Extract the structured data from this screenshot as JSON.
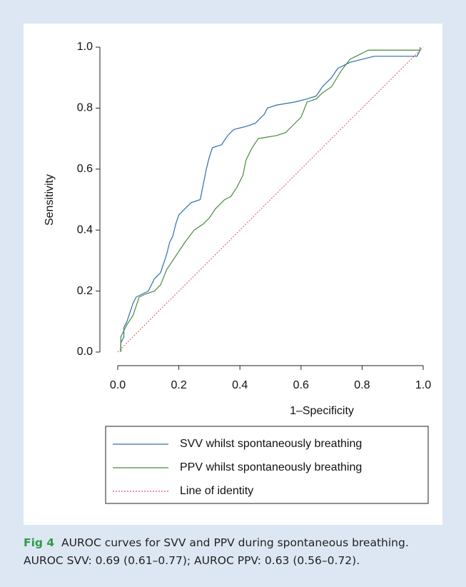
{
  "chart_data": {
    "type": "line",
    "x_label": "1–Specificity",
    "y_label": "Sensitivity",
    "caption_label": "Fig 4",
    "caption": "AUROC curves for SVV and PPV during spontaneous breathing. AUROC SVV: 0.69 (0.61–0.77); AUROC PPV: 0.63 (0.56–0.72).",
    "xlim": [
      0,
      1
    ],
    "ylim": [
      0,
      1
    ],
    "xticks": [
      {
        "value": 0,
        "label": "0.0"
      },
      {
        "value": 0.2,
        "label": "0.2"
      },
      {
        "value": 0.4,
        "label": "0.4"
      },
      {
        "value": 0.6,
        "label": "0.6"
      },
      {
        "value": 0.8,
        "label": "0.8"
      },
      {
        "value": 1,
        "label": "1.0"
      }
    ],
    "yticks": [
      {
        "value": 0,
        "label": "0.0"
      },
      {
        "value": 0.2,
        "label": "0.2"
      },
      {
        "value": 0.4,
        "label": "0.4"
      },
      {
        "value": 0.6,
        "label": "0.6"
      },
      {
        "value": 0.8,
        "label": "0.8"
      },
      {
        "value": 1,
        "label": "1.0"
      }
    ],
    "series": [
      {
        "name": "SVV whilst spontaneously breathing",
        "color": "#2b6fb0",
        "linestyle": "solid",
        "x": [
          0.01,
          0.01,
          0.02,
          0.02,
          0.03,
          0.04,
          0.05,
          0.06,
          0.08,
          0.1,
          0.12,
          0.14,
          0.15,
          0.16,
          0.17,
          0.18,
          0.19,
          0.2,
          0.22,
          0.23,
          0.24,
          0.27,
          0.28,
          0.29,
          0.3,
          0.31,
          0.34,
          0.36,
          0.38,
          0.42,
          0.45,
          0.48,
          0.49,
          0.52,
          0.58,
          0.62,
          0.65,
          0.67,
          0.7,
          0.72,
          0.76,
          0.8,
          0.84,
          0.98,
          0.99
        ],
        "values": [
          0,
          0.03,
          0.05,
          0.08,
          0.1,
          0.13,
          0.16,
          0.18,
          0.19,
          0.2,
          0.24,
          0.26,
          0.29,
          0.32,
          0.36,
          0.38,
          0.42,
          0.45,
          0.47,
          0.48,
          0.49,
          0.5,
          0.55,
          0.6,
          0.64,
          0.67,
          0.68,
          0.71,
          0.73,
          0.74,
          0.75,
          0.78,
          0.8,
          0.81,
          0.82,
          0.83,
          0.84,
          0.87,
          0.9,
          0.93,
          0.95,
          0.96,
          0.97,
          0.97,
          0.99
        ]
      },
      {
        "name": "PPV whilst spontaneously breathing",
        "color": "#4a8a3a",
        "linestyle": "solid",
        "x": [
          0.01,
          0.01,
          0.02,
          0.03,
          0.05,
          0.06,
          0.07,
          0.09,
          0.12,
          0.14,
          0.16,
          0.18,
          0.2,
          0.22,
          0.25,
          0.28,
          0.3,
          0.32,
          0.35,
          0.37,
          0.39,
          0.41,
          0.42,
          0.43,
          0.44,
          0.46,
          0.52,
          0.55,
          0.58,
          0.6,
          0.62,
          0.65,
          0.67,
          0.7,
          0.73,
          0.76,
          0.8,
          0.82,
          0.99,
          0.99
        ],
        "values": [
          0,
          0.05,
          0.07,
          0.09,
          0.12,
          0.15,
          0.18,
          0.19,
          0.2,
          0.22,
          0.27,
          0.3,
          0.33,
          0.36,
          0.4,
          0.42,
          0.44,
          0.47,
          0.5,
          0.51,
          0.54,
          0.58,
          0.63,
          0.65,
          0.67,
          0.7,
          0.71,
          0.72,
          0.75,
          0.77,
          0.82,
          0.83,
          0.85,
          0.87,
          0.92,
          0.96,
          0.98,
          0.99,
          0.99,
          1
        ]
      },
      {
        "name": "Line of identity",
        "color": "#e0506a",
        "linestyle": "dotted",
        "x": [
          0,
          1
        ],
        "values": [
          0,
          1
        ]
      }
    ]
  }
}
